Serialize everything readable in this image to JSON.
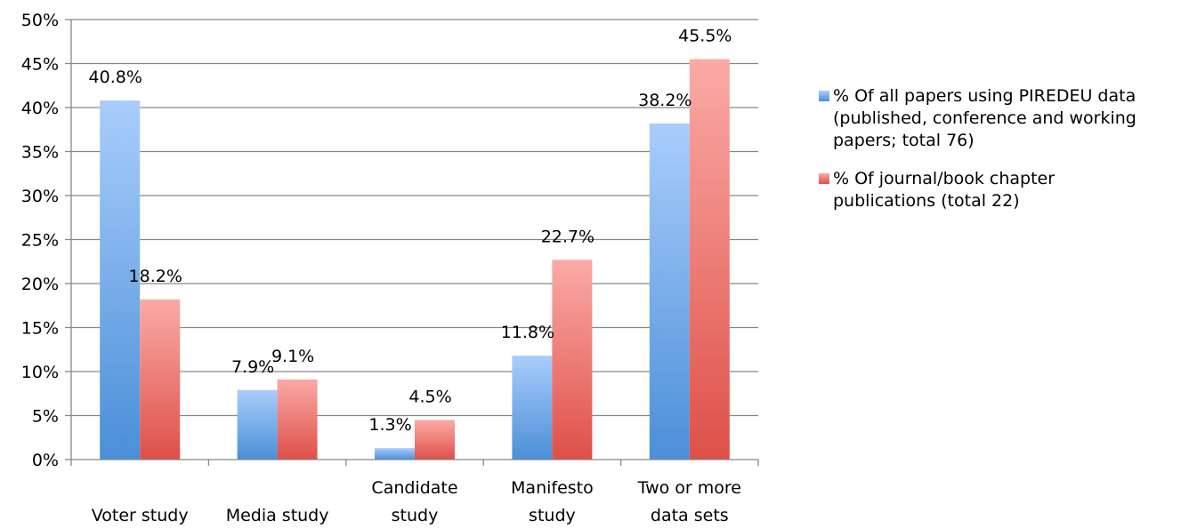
{
  "chart_data": {
    "type": "bar",
    "categories": [
      [
        "Voter study"
      ],
      [
        "Media study"
      ],
      [
        "Candidate",
        "study"
      ],
      [
        "Manifesto",
        "study"
      ],
      [
        "Two or more",
        "data sets"
      ]
    ],
    "series": [
      {
        "name": "% Of all papers using PIREDEU data (published, conference and working papers; total 76)",
        "name_lines": [
          "% Of all papers using PIREDEU data",
          "(published, conference and working",
          "papers; total 76)"
        ],
        "values": [
          40.8,
          7.9,
          1.3,
          11.8,
          38.2
        ],
        "labels": [
          "40.8%",
          "7.9%",
          "1.3%",
          "11.8%",
          "38.2%"
        ],
        "color_top": "#a9cdfb",
        "color_bottom": "#4a8fd8"
      },
      {
        "name": "% Of journal/book chapter publications (total 22)",
        "name_lines": [
          "% Of journal/book chapter",
          "publications (total 22)"
        ],
        "values": [
          18.2,
          9.1,
          4.5,
          22.7,
          45.5
        ],
        "labels": [
          "18.2%",
          "9.1%",
          "4.5%",
          "22.7%",
          "45.5%"
        ],
        "color_top": "#fbaaa6",
        "color_bottom": "#de5048"
      }
    ],
    "y_ticks": [
      "0%",
      "5%",
      "10%",
      "15%",
      "20%",
      "25%",
      "30%",
      "35%",
      "40%",
      "45%",
      "50%"
    ],
    "ylim": [
      0,
      50
    ],
    "grid": true,
    "legend_position": "right",
    "title": "",
    "xlabel": "",
    "ylabel": ""
  }
}
